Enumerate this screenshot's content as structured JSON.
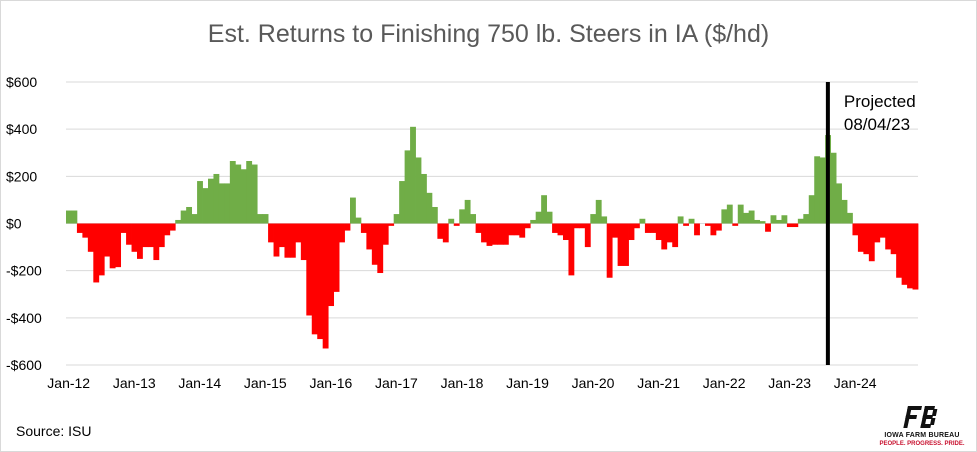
{
  "chart_data": {
    "type": "bar",
    "title": "Est. Returns to Finishing 750 lb. Steers in IA ($/hd)",
    "ylim": [
      -600,
      600
    ],
    "yticks": [
      600,
      400,
      200,
      0,
      -200,
      -400,
      -600
    ],
    "ytick_labels": [
      "$600",
      "$400",
      "$200",
      "$0",
      "-$200",
      "-$400",
      "-$600"
    ],
    "x_labels": [
      "Jan-12",
      "Jan-13",
      "Jan-14",
      "Jan-15",
      "Jan-16",
      "Jan-17",
      "Jan-18",
      "Jan-19",
      "Jan-20",
      "Jan-21",
      "Jan-22",
      "Jan-23",
      "Jan-24"
    ],
    "start_month": "Jan-12",
    "positive_color": "#70ad47",
    "negative_color": "#ff0000",
    "values": [
      55,
      55,
      -40,
      -60,
      -120,
      -250,
      -220,
      -140,
      -190,
      -185,
      -40,
      -90,
      -120,
      -150,
      -100,
      -100,
      -155,
      -100,
      -50,
      -30,
      15,
      55,
      70,
      40,
      180,
      150,
      190,
      210,
      170,
      170,
      265,
      250,
      230,
      265,
      250,
      40,
      40,
      -80,
      -140,
      -100,
      -145,
      -145,
      -80,
      -155,
      -390,
      -470,
      -490,
      -530,
      -350,
      -290,
      -80,
      -30,
      110,
      25,
      -40,
      -110,
      -175,
      -210,
      -90,
      -10,
      40,
      180,
      310,
      410,
      280,
      210,
      130,
      70,
      -65,
      -80,
      20,
      -10,
      60,
      100,
      40,
      -40,
      -80,
      -95,
      -90,
      -90,
      -90,
      -50,
      -50,
      -60,
      -20,
      15,
      50,
      120,
      50,
      -40,
      -50,
      -70,
      -220,
      -20,
      -20,
      -100,
      40,
      100,
      30,
      -230,
      -60,
      -180,
      -180,
      -70,
      -20,
      20,
      -40,
      -40,
      -70,
      -110,
      -80,
      -100,
      30,
      -10,
      20,
      -50,
      0,
      -10,
      -50,
      -30,
      60,
      80,
      -10,
      80,
      45,
      55,
      15,
      10,
      -35,
      35,
      15,
      35,
      -15,
      -15,
      20,
      40,
      120,
      285,
      280,
      375,
      300,
      170,
      100,
      45,
      -50,
      -120,
      -130,
      -160,
      -80,
      -60,
      -110,
      -130,
      -230,
      -260,
      -275,
      -280
    ],
    "annotation": {
      "month_index": 139,
      "text_line1": "Projected",
      "text_line2": "08/04/23"
    },
    "source": "Source: ISU"
  },
  "logo": {
    "name": "Iowa Farm Bureau",
    "line1": "IOWA FARM BUREAU",
    "line2": "PEOPLE. PROGRESS. PRIDE."
  }
}
